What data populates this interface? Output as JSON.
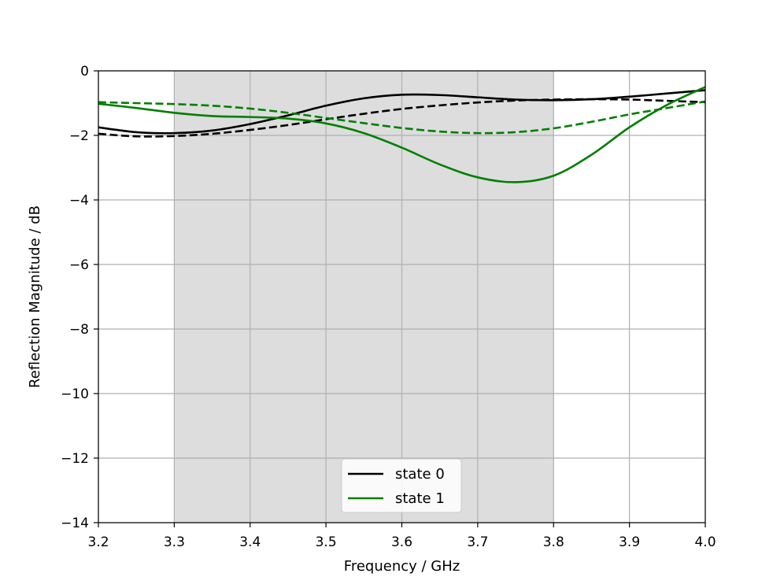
{
  "chart_data": {
    "type": "line",
    "title": "",
    "xlabel": "Frequency / GHz",
    "ylabel": "Reflection Magnitude / dB",
    "xlim": [
      3.2,
      4.0
    ],
    "ylim": [
      -14,
      0
    ],
    "xticks": [
      3.2,
      3.3,
      3.4,
      3.5,
      3.6,
      3.7,
      3.8,
      3.9,
      4.0
    ],
    "xtick_labels": [
      "3.2",
      "3.3",
      "3.4",
      "3.5",
      "3.6",
      "3.7",
      "3.8",
      "3.9",
      "4.0"
    ],
    "yticks": [
      0,
      -2,
      -4,
      -6,
      -8,
      -10,
      -12,
      -14
    ],
    "ytick_labels": [
      "0",
      "−2",
      "−4",
      "−6",
      "−8",
      "−10",
      "−12",
      "−14"
    ],
    "grid": true,
    "shaded_band": {
      "x_range": [
        3.3,
        3.8
      ],
      "color": "#dddddd"
    },
    "legend": {
      "placement": "lower center",
      "entries": [
        "state 0",
        "state 1"
      ]
    },
    "colors": {
      "state0": "#000000",
      "state1": "#007f00"
    },
    "series": [
      {
        "name": "state 0",
        "style": "solid",
        "color": "#000000",
        "x": [
          3.2,
          3.25,
          3.3,
          3.35,
          3.4,
          3.45,
          3.5,
          3.55,
          3.6,
          3.65,
          3.7,
          3.75,
          3.8,
          3.85,
          3.9,
          3.95,
          4.0
        ],
        "y": [
          -1.75,
          -1.9,
          -1.93,
          -1.85,
          -1.65,
          -1.38,
          -1.08,
          -0.85,
          -0.74,
          -0.75,
          -0.82,
          -0.89,
          -0.91,
          -0.88,
          -0.8,
          -0.7,
          -0.6
        ]
      },
      {
        "style": "dashed",
        "color": "#000000",
        "x": [
          3.2,
          3.25,
          3.3,
          3.35,
          3.4,
          3.45,
          3.5,
          3.55,
          3.6,
          3.65,
          3.7,
          3.75,
          3.8,
          3.85,
          3.9,
          3.95,
          4.0
        ],
        "y": [
          -1.95,
          -2.03,
          -2.02,
          -1.95,
          -1.83,
          -1.68,
          -1.5,
          -1.33,
          -1.18,
          -1.07,
          -0.98,
          -0.92,
          -0.89,
          -0.88,
          -0.89,
          -0.93,
          -0.97
        ]
      },
      {
        "name": "state 1",
        "style": "solid",
        "color": "#007f00",
        "x": [
          3.2,
          3.25,
          3.3,
          3.35,
          3.4,
          3.45,
          3.5,
          3.55,
          3.6,
          3.65,
          3.7,
          3.75,
          3.8,
          3.85,
          3.9,
          3.95,
          4.0
        ],
        "y": [
          -1.02,
          -1.15,
          -1.3,
          -1.4,
          -1.43,
          -1.48,
          -1.63,
          -1.93,
          -2.38,
          -2.9,
          -3.3,
          -3.45,
          -3.25,
          -2.6,
          -1.75,
          -1.05,
          -0.5
        ]
      },
      {
        "style": "dashed",
        "color": "#007f00",
        "x": [
          3.2,
          3.25,
          3.3,
          3.35,
          3.4,
          3.45,
          3.5,
          3.55,
          3.6,
          3.65,
          3.7,
          3.75,
          3.8,
          3.85,
          3.9,
          3.95,
          4.0
        ],
        "y": [
          -0.97,
          -1.0,
          -1.03,
          -1.08,
          -1.17,
          -1.3,
          -1.46,
          -1.62,
          -1.77,
          -1.88,
          -1.93,
          -1.9,
          -1.78,
          -1.58,
          -1.35,
          -1.15,
          -0.95
        ]
      }
    ]
  }
}
